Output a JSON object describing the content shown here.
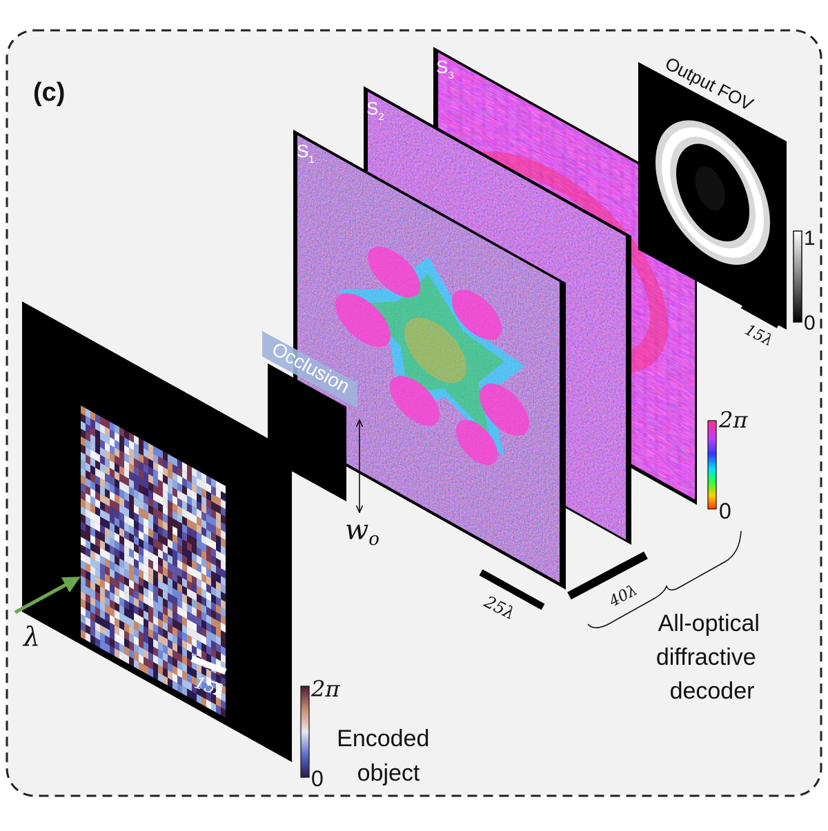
{
  "panel_label": "(c)",
  "occlusion_label": "Occlusion",
  "occlusion_width_label": "w",
  "occlusion_width_subscript": "o",
  "wavelength_label": "λ",
  "planes": [
    {
      "name": "S",
      "sub": "1"
    },
    {
      "name": "S",
      "sub": "2"
    },
    {
      "name": "S",
      "sub": "3"
    }
  ],
  "output_title": "Output FOV",
  "scales": {
    "object": "15λ",
    "layer": "25λ",
    "spacing": "40λ",
    "output": "15λ"
  },
  "phase_colorbar": {
    "max": "2π",
    "min": "0"
  },
  "object_colorbar": {
    "max": "2π",
    "min": "0"
  },
  "output_colorbar": {
    "max": "1",
    "min": "0"
  },
  "encoded_object_label": [
    "Encoded",
    "object"
  ],
  "decoder_label": [
    "All-optical",
    "diffractive",
    "decoder"
  ],
  "colors": {
    "frame_bg": "#f2f2f2",
    "frame_border": "#222222",
    "plane_black": "#000000",
    "arrow_green": "#6aa84f",
    "occlusion_tag": "#9fb4db",
    "phase_magenta": "#d04ee8"
  }
}
